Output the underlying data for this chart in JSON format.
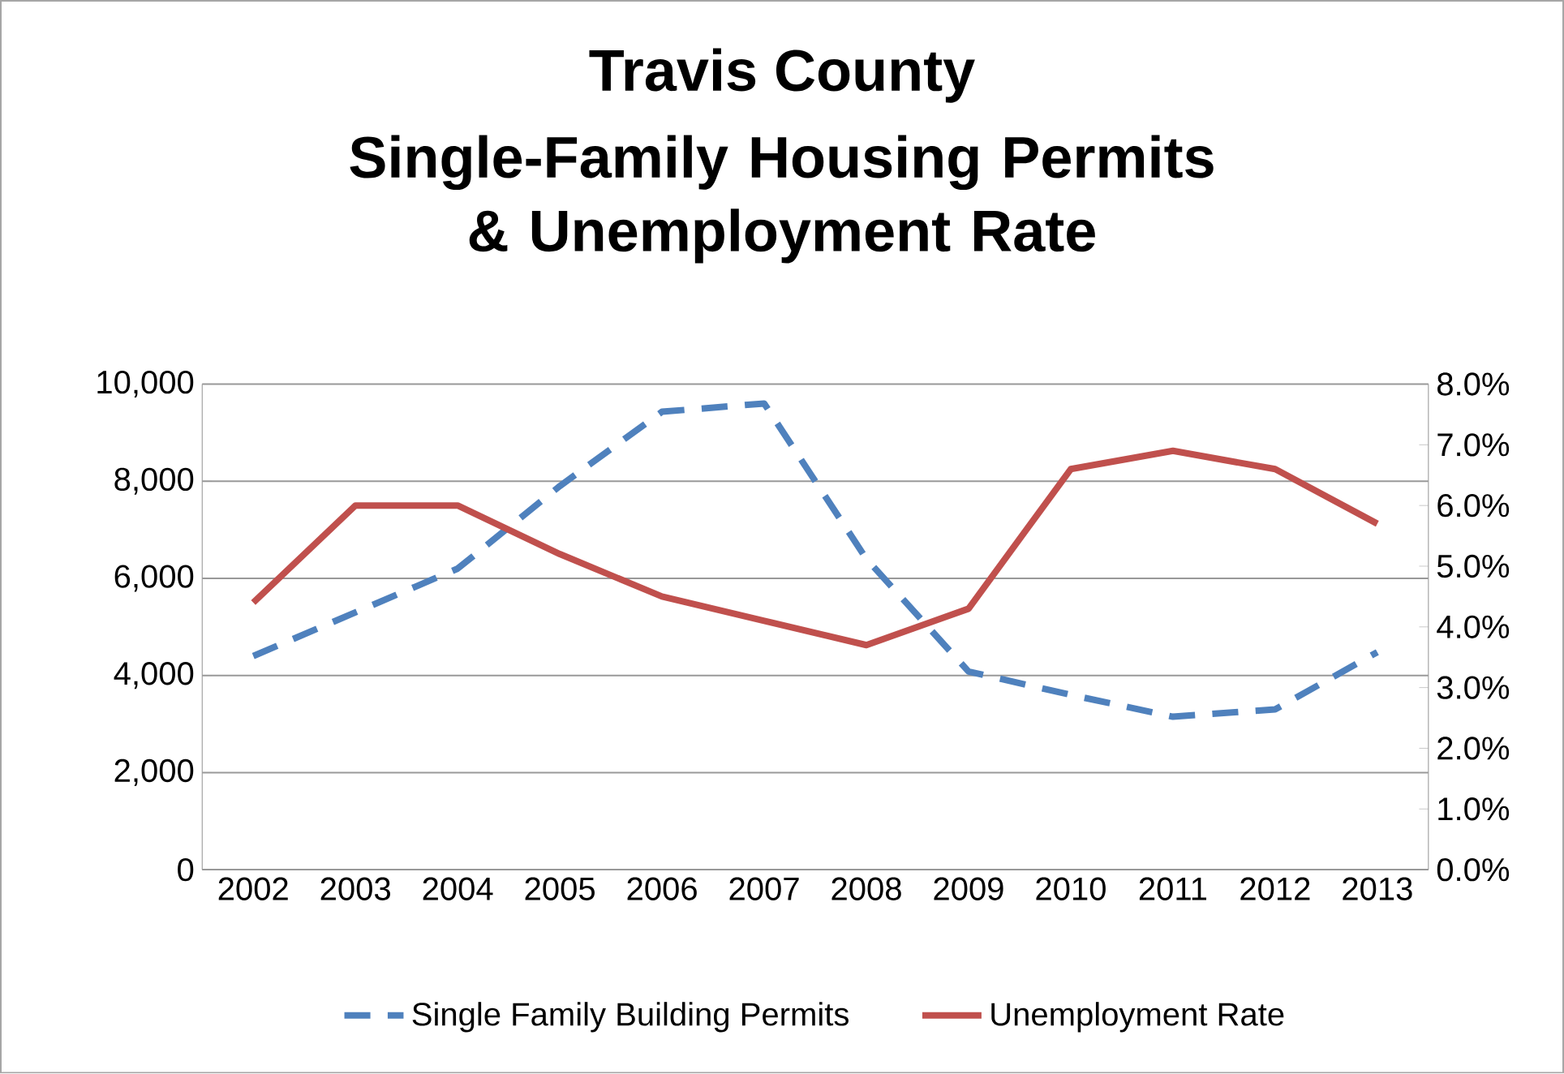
{
  "chart_data": {
    "type": "line",
    "title": "Travis County",
    "subtitle": "Single-Family Housing Permits & Unemployment Rate",
    "categories": [
      "2002",
      "2003",
      "2004",
      "2005",
      "2006",
      "2007",
      "2008",
      "2009",
      "2010",
      "2011",
      "2012",
      "2013"
    ],
    "series": [
      {
        "name": "Single Family Building Permits",
        "color": "#4f81bd",
        "line_style": "dashed",
        "values": [
          4400,
          5300,
          6200,
          7900,
          9430,
          9600,
          6400,
          4080,
          3600,
          3150,
          3300,
          4480
        ]
      },
      {
        "name": "Unemployment Rate",
        "color": "#c0504d",
        "line_style": "solid",
        "axis": "y2",
        "values": [
          4.4,
          6.0,
          6.0,
          5.2,
          4.5,
          4.1,
          3.7,
          4.3,
          6.6,
          6.9,
          6.6,
          5.7
        ]
      }
    ],
    "ylim": [
      0,
      10000
    ],
    "yticks": [
      0,
      {
        "value": 2000,
        "label": "2,000"
      },
      {
        "value": 4000,
        "label": "4,000"
      },
      {
        "value": 6000,
        "label": "6,000"
      },
      {
        "value": 8000,
        "label": "8,000"
      },
      {
        "value": 10000,
        "label": "10,000"
      }
    ],
    "y2lim": [
      0,
      8
    ],
    "y2ticks": [
      {
        "value": 0,
        "label": "0.0%"
      },
      {
        "value": 1,
        "label": "1.0%"
      },
      {
        "value": 2,
        "label": "2.0%"
      },
      {
        "value": 3,
        "label": "3.0%"
      },
      {
        "value": 4,
        "label": "4.0%"
      },
      {
        "value": 5,
        "label": "5.0%"
      },
      {
        "value": 6,
        "label": "6.0%"
      },
      {
        "value": 7,
        "label": "7.0%"
      },
      {
        "value": 8,
        "label": "8.0%"
      }
    ],
    "grid": "y",
    "legend": "bottom",
    "marker": "none"
  }
}
